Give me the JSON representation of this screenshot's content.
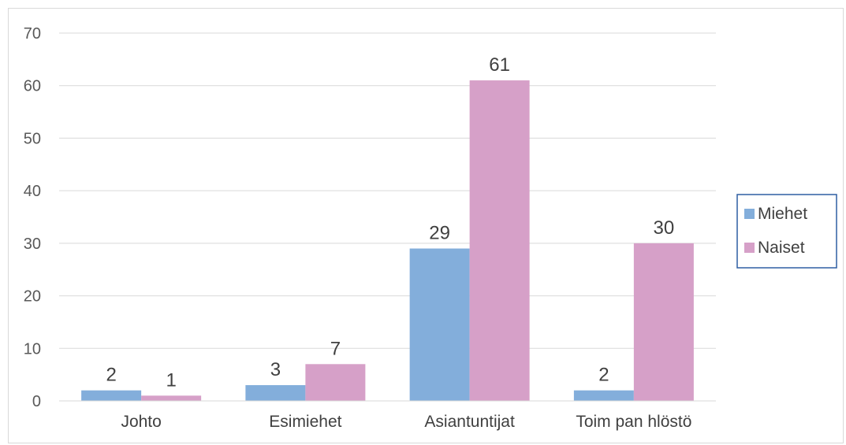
{
  "chart_data": {
    "type": "bar",
    "categories": [
      "Johto",
      "Esimiehet",
      "Asiantuntijat",
      "Toim pan hlöstö"
    ],
    "series": [
      {
        "name": "Miehet",
        "values": [
          2,
          3,
          29,
          2
        ],
        "color": "#83aedb"
      },
      {
        "name": "Naiset",
        "values": [
          1,
          7,
          61,
          30
        ],
        "color": "#d6a0c8"
      }
    ],
    "title": "",
    "xlabel": "",
    "ylabel": "",
    "ylim": [
      0,
      70
    ],
    "yticks": [
      0,
      10,
      20,
      30,
      40,
      50,
      60,
      70
    ],
    "grid": true,
    "legend_position": "right",
    "data_labels": true
  }
}
